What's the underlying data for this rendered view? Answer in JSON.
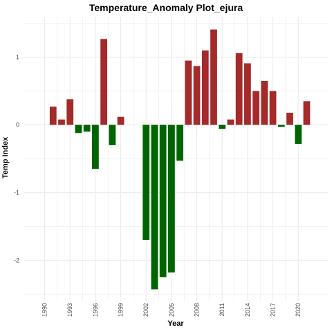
{
  "chart_data": {
    "type": "bar",
    "title": "Temperature_Anomaly Plot_ejura",
    "xlabel": "Year",
    "ylabel": "Temp Index",
    "x_tick_labels": [
      "1990",
      "1993",
      "1996",
      "1999",
      "2002",
      "2005",
      "2008",
      "2011",
      "2014",
      "2017",
      "2020"
    ],
    "y_tick_labels": [
      "-2",
      "-1",
      "0",
      "1"
    ],
    "ylim": [
      -2.6,
      1.6
    ],
    "xlim": [
      1987.5,
      2023.5
    ],
    "grid": true,
    "colors": {
      "positive": "#a52a2a",
      "negative": "#006400",
      "grid": "#ebebeb"
    },
    "categories": [
      1991,
      1992,
      1993,
      1994,
      1995,
      1996,
      1997,
      1998,
      1999,
      2000,
      2002,
      2003,
      2004,
      2005,
      2006,
      2007,
      2008,
      2009,
      2010,
      2011,
      2012,
      2013,
      2014,
      2015,
      2016,
      2017,
      2018,
      2019,
      2020,
      2021
    ],
    "values": [
      0.27,
      0.08,
      0.38,
      -0.12,
      -0.1,
      -0.65,
      1.27,
      -0.3,
      0.12,
      0.0,
      -1.7,
      -2.43,
      -2.25,
      -2.18,
      -0.53,
      0.95,
      0.87,
      1.1,
      1.41,
      -0.06,
      0.08,
      1.06,
      0.91,
      0.5,
      0.65,
      0.5,
      -0.03,
      0.18,
      -0.28,
      0.35
    ]
  }
}
